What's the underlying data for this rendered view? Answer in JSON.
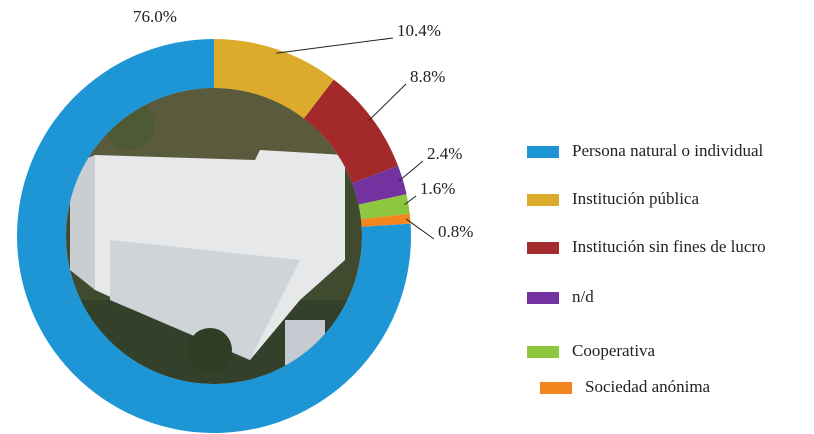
{
  "chart_data": {
    "type": "donut",
    "categories": [
      "Persona natural o individual",
      "Institución pública",
      "Institución sin fines de lucro",
      "n/d",
      "Cooperativa",
      "Sociedad anónima"
    ],
    "values": [
      76.0,
      10.4,
      8.8,
      2.4,
      1.6,
      0.8
    ],
    "value_labels": [
      "76.0%",
      "10.4%",
      "8.8%",
      "2.4%",
      "1.6%",
      "0.8%"
    ],
    "colors": [
      "#1e96d6",
      "#dcab2b",
      "#a3292a",
      "#7232a0",
      "#8dc63f",
      "#f5861f"
    ],
    "legend": "right"
  }
}
